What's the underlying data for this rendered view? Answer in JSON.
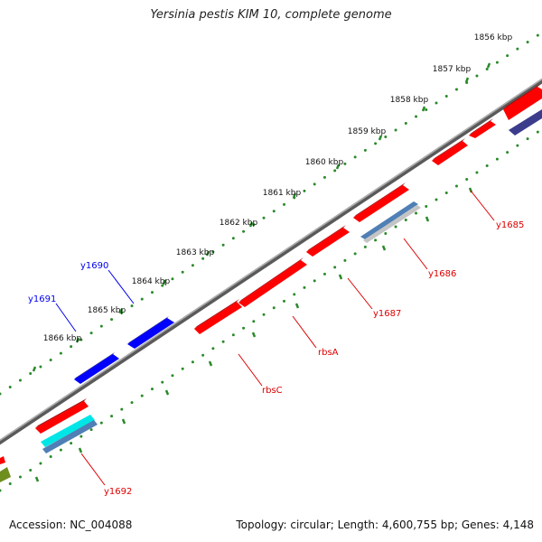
{
  "title": "Yersinia pestis KIM 10, complete genome",
  "footer": {
    "accession": "Accession: NC_004088",
    "summary": "Topology: circular; Length: 4,600,755 bp; Genes: 4,148"
  },
  "colors": {
    "backbone": "#808080",
    "tick": "#2a8a2a",
    "ruler_text": "#111111",
    "forward_label": "#0000ee",
    "reverse_label": "#dd0000",
    "red": "#ff0000",
    "blue": "#0000ff",
    "cyan": "#00e5e5",
    "steel": "#4f7fb5",
    "grey": "#c4c4c4",
    "navy": "#3c3c8c",
    "olive": "#6e8e1e"
  },
  "ruler": {
    "unit": "kbp",
    "labels": [
      "1856 kbp",
      "1857 kbp",
      "1858 kbp",
      "1859 kbp",
      "1860 kbp",
      "1861 kbp",
      "1862 kbp",
      "1863 kbp",
      "1864 kbp",
      "1865 kbp",
      "1866 kbp"
    ]
  },
  "gene_labels": {
    "forward": [
      "y1690",
      "y1691"
    ],
    "reverse": [
      "y1685",
      "y1686",
      "y1687",
      "rbsA",
      "rbsC",
      "y1692"
    ]
  }
}
